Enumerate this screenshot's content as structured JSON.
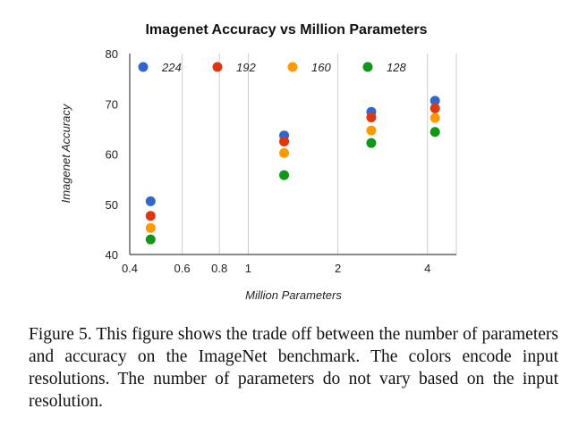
{
  "chart_data": {
    "type": "scatter",
    "title": "Imagenet Accuracy vs Million Parameters",
    "xlabel": "Million Parameters",
    "ylabel": "Imagenet Accuracy",
    "x_scale": "log",
    "xlim": [
      0.4,
      5
    ],
    "ylim": [
      40,
      80
    ],
    "x_ticks": [
      0.4,
      0.6,
      0.8,
      1,
      2,
      4
    ],
    "x_tick_labels": [
      "0.4",
      "0.6",
      "0.8",
      "1",
      "2",
      "4"
    ],
    "y_ticks": [
      40,
      50,
      60,
      70,
      80
    ],
    "y_tick_labels": [
      "40",
      "50",
      "60",
      "70",
      "80"
    ],
    "grid": "vertical",
    "legend_position": "top",
    "series": [
      {
        "name": "224",
        "color": "#3366cc",
        "x": [
          0.47,
          1.32,
          2.59,
          4.24
        ],
        "y": [
          50.6,
          63.7,
          68.4,
          70.6
        ]
      },
      {
        "name": "192",
        "color": "#dc3912",
        "x": [
          0.47,
          1.32,
          2.59,
          4.24
        ],
        "y": [
          47.7,
          62.5,
          67.3,
          69.1
        ]
      },
      {
        "name": "160",
        "color": "#ff9900",
        "x": [
          0.47,
          1.32,
          2.59,
          4.24
        ],
        "y": [
          45.3,
          60.2,
          64.7,
          67.2
        ]
      },
      {
        "name": "128",
        "color": "#109618",
        "x": [
          0.47,
          1.32,
          2.59,
          4.24
        ],
        "y": [
          43.0,
          55.8,
          62.2,
          64.4
        ]
      }
    ]
  },
  "caption": "Figure 5. This figure shows the trade off between the number of parameters and accuracy on the ImageNet benchmark. The colors encode input resolutions.  The number of parameters do not vary based on the input resolution."
}
